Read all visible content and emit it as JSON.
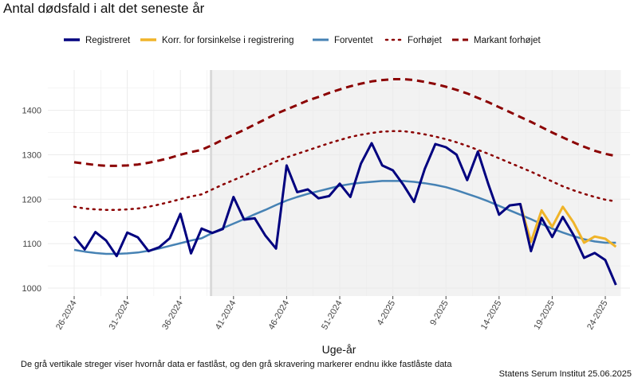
{
  "title": "Antal dødsfald i alt det seneste år",
  "footer_note": "De grå vertikale streger viser hvornår data er fastlåst, og den grå skravering markerer endnu ikke fastlåste data",
  "source": "Statens Serum Institut  25.06.2025",
  "chart_data": {
    "type": "line",
    "title": "Antal dødsfald i alt det seneste år",
    "xlabel": "Uge-år",
    "ylabel": "",
    "x_ticks": [
      "26-2024",
      "31-2024",
      "36-2024",
      "41-2024",
      "46-2024",
      "51-2024",
      "4-2025",
      "9-2025",
      "14-2025",
      "19-2025",
      "24-2025"
    ],
    "x_tick_index": [
      0,
      5,
      10,
      15,
      20,
      25,
      30,
      35,
      40,
      45,
      50
    ],
    "ylim": [
      985,
      1490
    ],
    "y_ticks": [
      1000,
      1100,
      1200,
      1300,
      1400
    ],
    "frozen_line_index": 13,
    "shaded_from_index": 13,
    "shaded_to_index": 51,
    "legend": [
      "Registreret",
      "Korr. for forsinkelse i registrering",
      "Forventet",
      "Forhøjet",
      "Markant forhøjet"
    ],
    "colors": {
      "registreret": "#00007f",
      "korr": "#f0b429",
      "forventet": "#4682b4",
      "forhojet": "#8b0000",
      "markant": "#8b0000",
      "shade": "#f2f2f2",
      "frozen_line": "#d9d9d9",
      "grid": "#ebebeb"
    },
    "series": [
      {
        "name": "Registreret",
        "start_index": 0,
        "values": [
          1116,
          1087,
          1126,
          1107,
          1072,
          1125,
          1114,
          1083,
          1092,
          1112,
          1167,
          1078,
          1134,
          1124,
          1133,
          1205,
          1154,
          1157,
          1118,
          1089,
          1276,
          1216,
          1222,
          1202,
          1207,
          1235,
          1205,
          1280,
          1326,
          1276,
          1265,
          1232,
          1194,
          1268,
          1324,
          1317,
          1300,
          1243,
          1307,
          1233,
          1165,
          1186,
          1189,
          1083,
          1158,
          1115,
          1160,
          1120,
          1068,
          1079,
          1063,
          1007
        ]
      },
      {
        "name": "Korr. for forsinkelse i registrering",
        "start_index": 42,
        "values": [
          1189,
          1104,
          1175,
          1138,
          1183,
          1148,
          1102,
          1116,
          1111,
          1093
        ]
      },
      {
        "name": "Forventet",
        "start_index": 0,
        "values": [
          1086,
          1082,
          1079,
          1077,
          1077,
          1078,
          1080,
          1084,
          1089,
          1095,
          1101,
          1107,
          1112,
          1124,
          1135,
          1145,
          1155,
          1166,
          1176,
          1187,
          1197,
          1205,
          1212,
          1218,
          1224,
          1230,
          1234,
          1237,
          1239,
          1241,
          1241,
          1241,
          1239,
          1236,
          1232,
          1227,
          1220,
          1212,
          1204,
          1195,
          1185,
          1175,
          1165,
          1155,
          1144,
          1134,
          1125,
          1117,
          1110,
          1105,
          1102,
          1102
        ]
      },
      {
        "name": "Forhøjet",
        "start_index": 0,
        "values": [
          1183,
          1179,
          1177,
          1176,
          1176,
          1177,
          1179,
          1183,
          1188,
          1194,
          1200,
          1206,
          1211,
          1222,
          1233,
          1243,
          1253,
          1264,
          1274,
          1285,
          1294,
          1302,
          1310,
          1318,
          1326,
          1333,
          1340,
          1345,
          1349,
          1352,
          1353,
          1353,
          1350,
          1346,
          1341,
          1335,
          1328,
          1320,
          1311,
          1302,
          1292,
          1282,
          1272,
          1262,
          1251,
          1240,
          1229,
          1220,
          1212,
          1205,
          1199,
          1195
        ]
      },
      {
        "name": "Markant forhøjet",
        "start_index": 0,
        "values": [
          1283,
          1280,
          1277,
          1275,
          1275,
          1276,
          1278,
          1282,
          1287,
          1293,
          1300,
          1306,
          1311,
          1322,
          1334,
          1345,
          1356,
          1368,
          1380,
          1392,
          1402,
          1412,
          1422,
          1430,
          1439,
          1447,
          1454,
          1460,
          1465,
          1468,
          1470,
          1470,
          1468,
          1464,
          1459,
          1453,
          1446,
          1438,
          1428,
          1418,
          1407,
          1396,
          1385,
          1374,
          1362,
          1350,
          1339,
          1328,
          1318,
          1309,
          1302,
          1297
        ]
      }
    ]
  }
}
